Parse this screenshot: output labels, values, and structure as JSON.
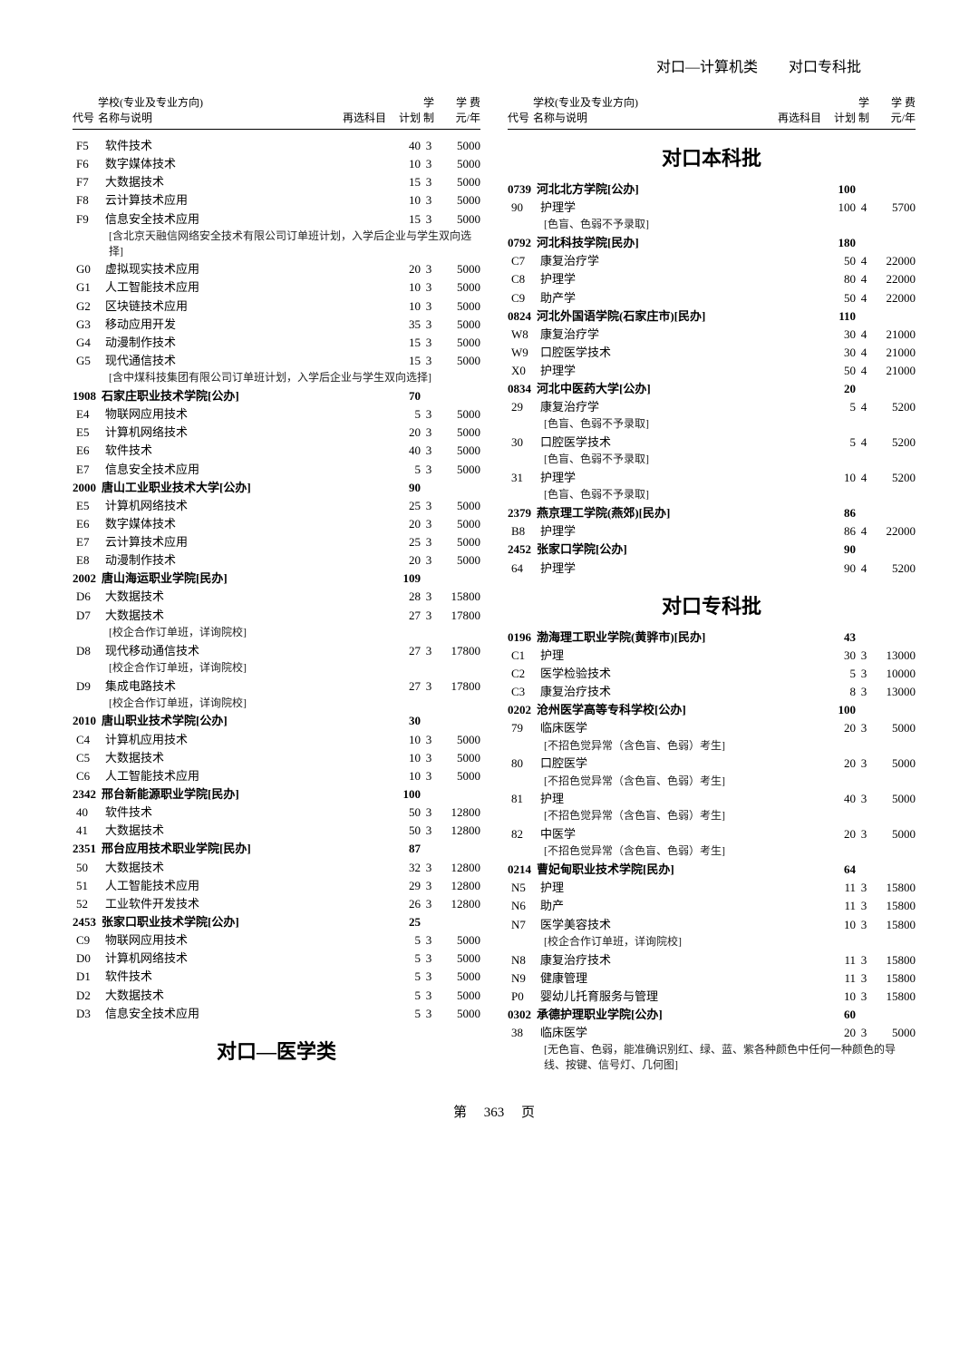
{
  "pageHeader": {
    "left": "对口—计算机类",
    "right": "对口专科批"
  },
  "columnHeaders": {
    "code": "代号",
    "name": "学校(专业及专业方向)\n名称与说明",
    "subj": "再选科目",
    "plan": "计划",
    "year": "学制",
    "fee": "学 费\n元/年"
  },
  "leftBlocks": [
    {
      "type": "items",
      "items": [
        {
          "code": "F5",
          "name": "软件技术",
          "plan": "40",
          "yr": "3",
          "fee": "5000"
        },
        {
          "code": "F6",
          "name": "数字媒体技术",
          "plan": "10",
          "yr": "3",
          "fee": "5000"
        },
        {
          "code": "F7",
          "name": "大数据技术",
          "plan": "15",
          "yr": "3",
          "fee": "5000"
        },
        {
          "code": "F8",
          "name": "云计算技术应用",
          "plan": "10",
          "yr": "3",
          "fee": "5000"
        },
        {
          "code": "F9",
          "name": "信息安全技术应用",
          "plan": "15",
          "yr": "3",
          "fee": "5000",
          "note": "[含北京天融信网络安全技术有限公司订单班计划，入学后企业与学生双向选择]"
        },
        {
          "code": "G0",
          "name": "虚拟现实技术应用",
          "plan": "20",
          "yr": "3",
          "fee": "5000"
        },
        {
          "code": "G1",
          "name": "人工智能技术应用",
          "plan": "10",
          "yr": "3",
          "fee": "5000"
        },
        {
          "code": "G2",
          "name": "区块链技术应用",
          "plan": "10",
          "yr": "3",
          "fee": "5000"
        },
        {
          "code": "G3",
          "name": "移动应用开发",
          "plan": "35",
          "yr": "3",
          "fee": "5000"
        },
        {
          "code": "G4",
          "name": "动漫制作技术",
          "plan": "15",
          "yr": "3",
          "fee": "5000"
        },
        {
          "code": "G5",
          "name": "现代通信技术",
          "plan": "15",
          "yr": "3",
          "fee": "5000",
          "note": "[含中煤科技集团有限公司订单班计划，入学后企业与学生双向选择]"
        }
      ]
    },
    {
      "type": "school",
      "code": "1908",
      "name": "石家庄职业技术学院[公办]",
      "plan": "70",
      "items": [
        {
          "code": "E4",
          "name": "物联网应用技术",
          "plan": "5",
          "yr": "3",
          "fee": "5000"
        },
        {
          "code": "E5",
          "name": "计算机网络技术",
          "plan": "20",
          "yr": "3",
          "fee": "5000"
        },
        {
          "code": "E6",
          "name": "软件技术",
          "plan": "40",
          "yr": "3",
          "fee": "5000"
        },
        {
          "code": "E7",
          "name": "信息安全技术应用",
          "plan": "5",
          "yr": "3",
          "fee": "5000"
        }
      ]
    },
    {
      "type": "school",
      "code": "2000",
      "name": "唐山工业职业技术大学[公办]",
      "plan": "90",
      "items": [
        {
          "code": "E5",
          "name": "计算机网络技术",
          "plan": "25",
          "yr": "3",
          "fee": "5000"
        },
        {
          "code": "E6",
          "name": "数字媒体技术",
          "plan": "20",
          "yr": "3",
          "fee": "5000"
        },
        {
          "code": "E7",
          "name": "云计算技术应用",
          "plan": "25",
          "yr": "3",
          "fee": "5000"
        },
        {
          "code": "E8",
          "name": "动漫制作技术",
          "plan": "20",
          "yr": "3",
          "fee": "5000"
        }
      ]
    },
    {
      "type": "school",
      "code": "2002",
      "name": "唐山海运职业学院[民办]",
      "plan": "109",
      "items": [
        {
          "code": "D6",
          "name": "大数据技术",
          "plan": "28",
          "yr": "3",
          "fee": "15800"
        },
        {
          "code": "D7",
          "name": "大数据技术",
          "plan": "27",
          "yr": "3",
          "fee": "17800",
          "note": "[校企合作订单班，详询院校]"
        },
        {
          "code": "D8",
          "name": "现代移动通信技术",
          "plan": "27",
          "yr": "3",
          "fee": "17800",
          "note": "[校企合作订单班，详询院校]"
        },
        {
          "code": "D9",
          "name": "集成电路技术",
          "plan": "27",
          "yr": "3",
          "fee": "17800",
          "note": "[校企合作订单班，详询院校]"
        }
      ]
    },
    {
      "type": "school",
      "code": "2010",
      "name": "唐山职业技术学院[公办]",
      "plan": "30",
      "items": [
        {
          "code": "C4",
          "name": "计算机应用技术",
          "plan": "10",
          "yr": "3",
          "fee": "5000"
        },
        {
          "code": "C5",
          "name": "大数据技术",
          "plan": "10",
          "yr": "3",
          "fee": "5000"
        },
        {
          "code": "C6",
          "name": "人工智能技术应用",
          "plan": "10",
          "yr": "3",
          "fee": "5000"
        }
      ]
    },
    {
      "type": "school",
      "code": "2342",
      "name": "邢台新能源职业学院[民办]",
      "plan": "100",
      "items": [
        {
          "code": "40",
          "name": "软件技术",
          "plan": "50",
          "yr": "3",
          "fee": "12800"
        },
        {
          "code": "41",
          "name": "大数据技术",
          "plan": "50",
          "yr": "3",
          "fee": "12800"
        }
      ]
    },
    {
      "type": "school",
      "code": "2351",
      "name": "邢台应用技术职业学院[民办]",
      "plan": "87",
      "items": [
        {
          "code": "50",
          "name": "大数据技术",
          "plan": "32",
          "yr": "3",
          "fee": "12800"
        },
        {
          "code": "51",
          "name": "人工智能技术应用",
          "plan": "29",
          "yr": "3",
          "fee": "12800"
        },
        {
          "code": "52",
          "name": "工业软件开发技术",
          "plan": "26",
          "yr": "3",
          "fee": "12800"
        }
      ]
    },
    {
      "type": "school",
      "code": "2453",
      "name": "张家口职业技术学院[公办]",
      "plan": "25",
      "items": [
        {
          "code": "C9",
          "name": "物联网应用技术",
          "plan": "5",
          "yr": "3",
          "fee": "5000"
        },
        {
          "code": "D0",
          "name": "计算机网络技术",
          "plan": "5",
          "yr": "3",
          "fee": "5000"
        },
        {
          "code": "D1",
          "name": "软件技术",
          "plan": "5",
          "yr": "3",
          "fee": "5000"
        },
        {
          "code": "D2",
          "name": "大数据技术",
          "plan": "5",
          "yr": "3",
          "fee": "5000"
        },
        {
          "code": "D3",
          "name": "信息安全技术应用",
          "plan": "5",
          "yr": "3",
          "fee": "5000"
        }
      ]
    },
    {
      "type": "section",
      "title": "对口—医学类"
    }
  ],
  "rightBlocks": [
    {
      "type": "section",
      "title": "对口本科批"
    },
    {
      "type": "school",
      "code": "0739",
      "name": "河北北方学院[公办]",
      "plan": "100",
      "items": [
        {
          "code": "90",
          "name": "护理学",
          "plan": "100",
          "yr": "4",
          "fee": "5700",
          "note": "[色盲、色弱不予录取]"
        }
      ]
    },
    {
      "type": "school",
      "code": "0792",
      "name": "河北科技学院[民办]",
      "plan": "180",
      "items": [
        {
          "code": "C7",
          "name": "康复治疗学",
          "plan": "50",
          "yr": "4",
          "fee": "22000"
        },
        {
          "code": "C8",
          "name": "护理学",
          "plan": "80",
          "yr": "4",
          "fee": "22000"
        },
        {
          "code": "C9",
          "name": "助产学",
          "plan": "50",
          "yr": "4",
          "fee": "22000"
        }
      ]
    },
    {
      "type": "school",
      "code": "0824",
      "name": "河北外国语学院(石家庄市)[民办]",
      "plan": "110",
      "items": [
        {
          "code": "W8",
          "name": "康复治疗学",
          "plan": "30",
          "yr": "4",
          "fee": "21000"
        },
        {
          "code": "W9",
          "name": "口腔医学技术",
          "plan": "30",
          "yr": "4",
          "fee": "21000"
        },
        {
          "code": "X0",
          "name": "护理学",
          "plan": "50",
          "yr": "4",
          "fee": "21000"
        }
      ]
    },
    {
      "type": "school",
      "code": "0834",
      "name": "河北中医药大学[公办]",
      "plan": "20",
      "items": [
        {
          "code": "29",
          "name": "康复治疗学",
          "plan": "5",
          "yr": "4",
          "fee": "5200",
          "note": "[色盲、色弱不予录取]"
        },
        {
          "code": "30",
          "name": "口腔医学技术",
          "plan": "5",
          "yr": "4",
          "fee": "5200",
          "note": "[色盲、色弱不予录取]"
        },
        {
          "code": "31",
          "name": "护理学",
          "plan": "10",
          "yr": "4",
          "fee": "5200",
          "note": "[色盲、色弱不予录取]"
        }
      ]
    },
    {
      "type": "school",
      "code": "2379",
      "name": "燕京理工学院(燕郊)[民办]",
      "plan": "86",
      "items": [
        {
          "code": "B8",
          "name": "护理学",
          "plan": "86",
          "yr": "4",
          "fee": "22000"
        }
      ]
    },
    {
      "type": "school",
      "code": "2452",
      "name": "张家口学院[公办]",
      "plan": "90",
      "items": [
        {
          "code": "64",
          "name": "护理学",
          "plan": "90",
          "yr": "4",
          "fee": "5200"
        }
      ]
    },
    {
      "type": "section",
      "title": "对口专科批"
    },
    {
      "type": "school",
      "code": "0196",
      "name": "渤海理工职业学院(黄骅市)[民办]",
      "plan": "43",
      "items": [
        {
          "code": "C1",
          "name": "护理",
          "plan": "30",
          "yr": "3",
          "fee": "13000"
        },
        {
          "code": "C2",
          "name": "医学检验技术",
          "plan": "5",
          "yr": "3",
          "fee": "10000"
        },
        {
          "code": "C3",
          "name": "康复治疗技术",
          "plan": "8",
          "yr": "3",
          "fee": "13000"
        }
      ]
    },
    {
      "type": "school",
      "code": "0202",
      "name": "沧州医学高等专科学校[公办]",
      "plan": "100",
      "items": [
        {
          "code": "79",
          "name": "临床医学",
          "plan": "20",
          "yr": "3",
          "fee": "5000",
          "note": "[不招色觉异常（含色盲、色弱）考生]"
        },
        {
          "code": "80",
          "name": "口腔医学",
          "plan": "20",
          "yr": "3",
          "fee": "5000",
          "note": "[不招色觉异常（含色盲、色弱）考生]"
        },
        {
          "code": "81",
          "name": "护理",
          "plan": "40",
          "yr": "3",
          "fee": "5000",
          "note": "[不招色觉异常（含色盲、色弱）考生]"
        },
        {
          "code": "82",
          "name": "中医学",
          "plan": "20",
          "yr": "3",
          "fee": "5000",
          "note": "[不招色觉异常（含色盲、色弱）考生]"
        }
      ]
    },
    {
      "type": "school",
      "code": "0214",
      "name": "曹妃甸职业技术学院[民办]",
      "plan": "64",
      "items": [
        {
          "code": "N5",
          "name": "护理",
          "plan": "11",
          "yr": "3",
          "fee": "15800"
        },
        {
          "code": "N6",
          "name": "助产",
          "plan": "11",
          "yr": "3",
          "fee": "15800"
        },
        {
          "code": "N7",
          "name": "医学美容技术",
          "plan": "10",
          "yr": "3",
          "fee": "15800",
          "note": "[校企合作订单班，详询院校]"
        },
        {
          "code": "N8",
          "name": "康复治疗技术",
          "plan": "11",
          "yr": "3",
          "fee": "15800"
        },
        {
          "code": "N9",
          "name": "健康管理",
          "plan": "11",
          "yr": "3",
          "fee": "15800"
        },
        {
          "code": "P0",
          "name": "婴幼儿托育服务与管理",
          "plan": "10",
          "yr": "3",
          "fee": "15800"
        }
      ]
    },
    {
      "type": "school",
      "code": "0302",
      "name": "承德护理职业学院[公办]",
      "plan": "60",
      "items": [
        {
          "code": "38",
          "name": "临床医学",
          "plan": "20",
          "yr": "3",
          "fee": "5000",
          "note": "[无色盲、色弱，能准确识别红、绿、蓝、紫各种颜色中任何一种颜色的导线、按键、信号灯、几何图]"
        }
      ]
    }
  ],
  "footer": {
    "left": "第",
    "page": "363",
    "right": "页"
  }
}
